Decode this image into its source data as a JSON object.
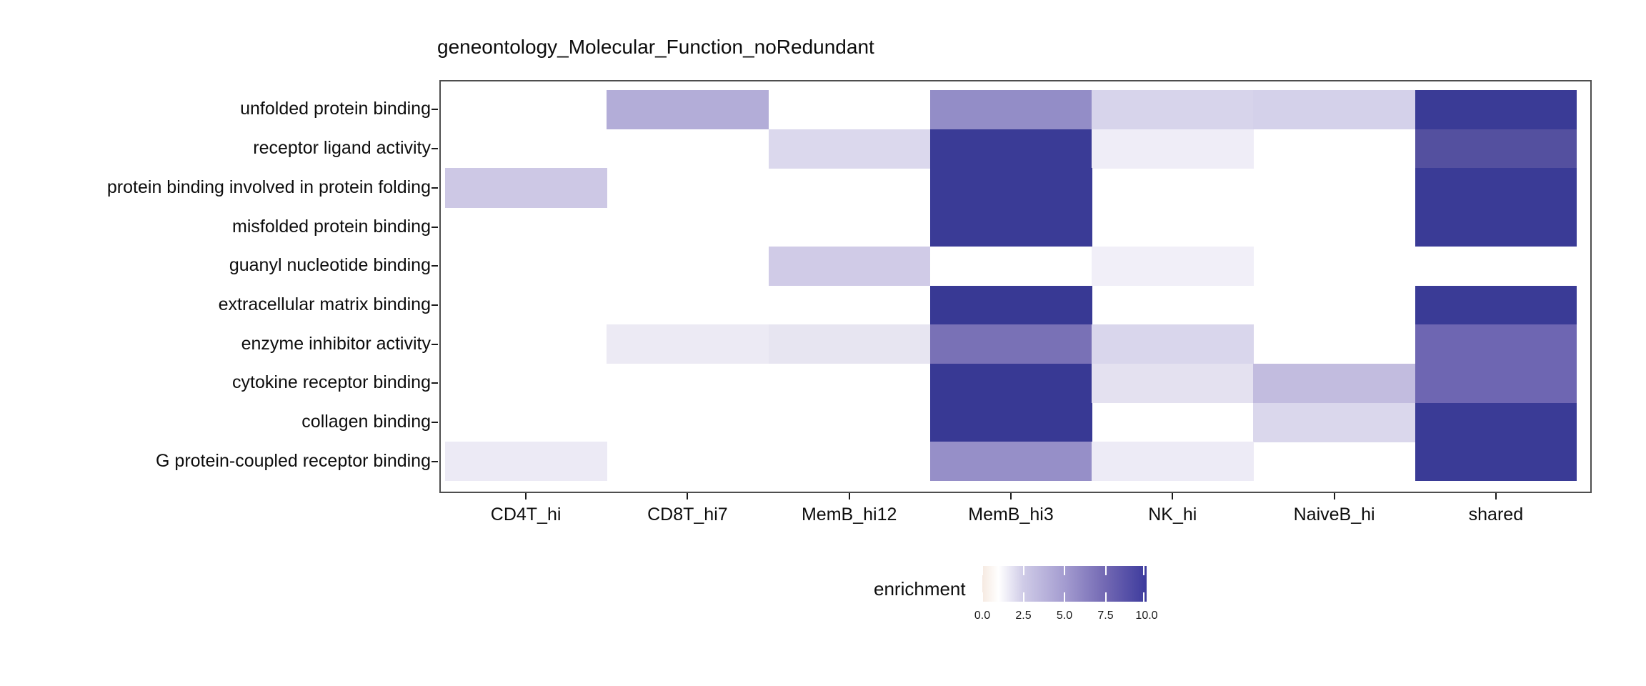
{
  "title": "geneontology_Molecular_Function_noRedundant",
  "chart_data": {
    "type": "heatmap",
    "title": "geneontology_Molecular_Function_noRedundant",
    "x_categories": [
      "CD4T_hi",
      "CD8T_hi7",
      "MemB_hi12",
      "MemB_hi3",
      "NK_hi",
      "NaiveB_hi",
      "shared"
    ],
    "y_categories": [
      "unfolded protein binding",
      "receptor ligand activity",
      "protein binding involved in protein folding",
      "misfolded protein binding",
      "guanyl nucleotide binding",
      "extracellular matrix binding",
      "enzyme inhibitor activity",
      "cytokine receptor binding",
      "collagen binding",
      "G protein-coupled receptor binding"
    ],
    "values": [
      [
        null,
        4.2,
        null,
        5.9,
        2.3,
        2.4,
        10
      ],
      [
        null,
        null,
        2.1,
        10,
        1.2,
        null,
        8.8
      ],
      [
        2.7,
        null,
        null,
        10,
        null,
        null,
        10
      ],
      [
        null,
        null,
        null,
        10,
        null,
        null,
        10
      ],
      [
        null,
        null,
        2.5,
        null,
        1.1,
        null,
        null
      ],
      [
        null,
        null,
        null,
        10,
        null,
        null,
        10
      ],
      [
        null,
        1.4,
        1.7,
        7.3,
        2.3,
        null,
        7.7
      ],
      [
        null,
        null,
        null,
        10,
        1.8,
        3.3,
        7.7
      ],
      [
        null,
        null,
        null,
        10,
        null,
        2.2,
        10
      ],
      [
        1.4,
        null,
        null,
        5.8,
        1.2,
        null,
        10
      ]
    ],
    "cell_colors": [
      [
        null,
        "#B3ADD8",
        null,
        "#938DC7",
        "#D7D4EB",
        "#D4D1EA",
        "#3A3B96"
      ],
      [
        null,
        null,
        "#DBD8ED",
        "#3A3B96",
        "#EFEDF7",
        null,
        "#54509F"
      ],
      [
        "#CDC8E5",
        null,
        null,
        "#3A3B96",
        null,
        null,
        "#3A3B96"
      ],
      [
        null,
        null,
        null,
        "#3A3B96",
        null,
        null,
        "#3A3B96"
      ],
      [
        null,
        null,
        "#D0CBE7",
        null,
        "#F1EFF8",
        null,
        null
      ],
      [
        null,
        null,
        null,
        "#383994",
        null,
        null,
        "#3A3B96"
      ],
      [
        null,
        "#ECEAF4",
        "#E7E5F1",
        "#7971B6",
        "#D9D6EC",
        null,
        "#6E66B2"
      ],
      [
        null,
        null,
        null,
        "#383994",
        "#E4E1F0",
        "#C2BCDF",
        "#6E66B2"
      ],
      [
        null,
        null,
        null,
        "#383994",
        null,
        "#DAD7EC",
        "#3A3B96"
      ],
      [
        "#ECEAF5",
        null,
        null,
        "#968FC8",
        "#EDEBF6",
        null,
        "#3A3B96"
      ]
    ],
    "missing_color": "#FFFFFF",
    "legend": {
      "label": "enrichment",
      "range": [
        0,
        10
      ],
      "tick_labels": [
        "0.0",
        "2.5",
        "5.0",
        "7.5",
        "10.0"
      ],
      "tick_values": [
        0,
        2.5,
        5,
        7.5,
        10
      ],
      "gradient": [
        {
          "pos": 0,
          "color": "#F6EAE1"
        },
        {
          "pos": 0.1,
          "color": "#FFFFFF"
        },
        {
          "pos": 0.25,
          "color": "#CFCBE7"
        },
        {
          "pos": 0.5,
          "color": "#A49CD0"
        },
        {
          "pos": 0.75,
          "color": "#7268B3"
        },
        {
          "pos": 1,
          "color": "#3D3B9D"
        }
      ],
      "position": "bottom"
    },
    "grid": false,
    "panel_border": true
  },
  "colors": {
    "panel_border": "#4E4E4E",
    "axis_tick": "#1A1A1A",
    "text": "#0D0D0D",
    "background": "#FFFFFF"
  }
}
